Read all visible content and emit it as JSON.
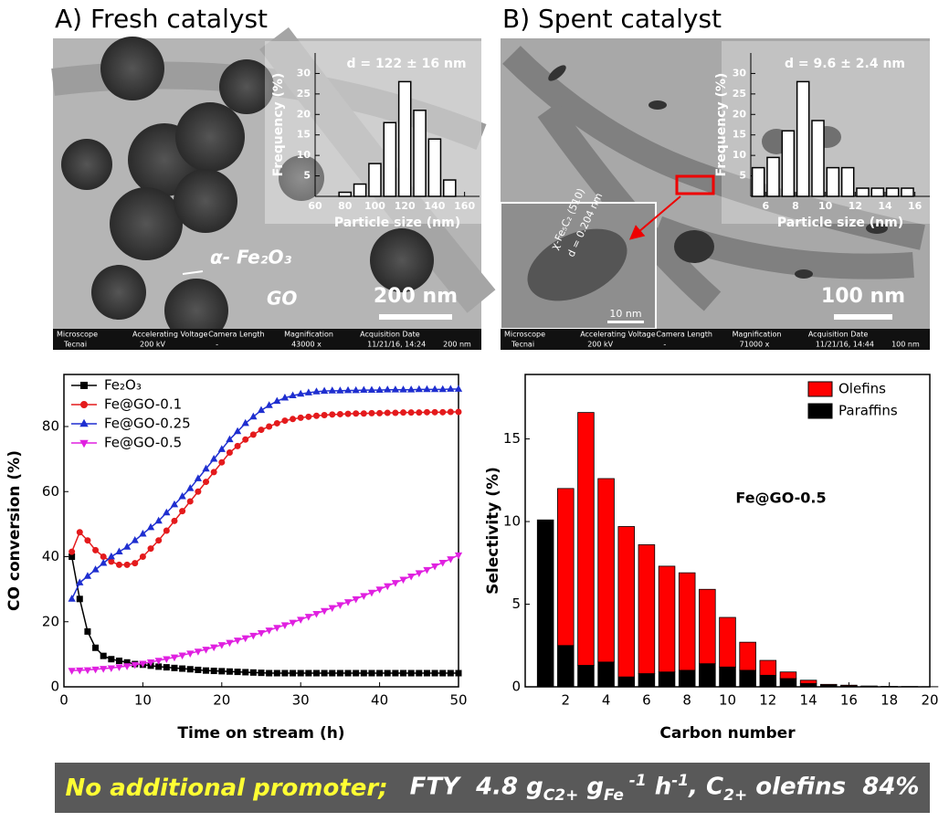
{
  "panels": [
    {
      "title": "A) Fresh catalyst",
      "labels": [
        "α- Fe₂O₃",
        "GO"
      ],
      "scale_bar": "200 nm",
      "info_header": [
        "Microscope",
        "Accelerating Voltage",
        "Camera Length",
        "Magnification",
        "Acquisition Date"
      ],
      "info_values": [
        "Tecnai",
        "200 kV",
        "-",
        "43000 x",
        "11/21/16, 14:24",
        "200 nm"
      ]
    },
    {
      "title": "B) Spent catalyst",
      "labels": [
        "χ-Fe₅C₂ (510)",
        "d = 0.204 nm",
        "10 nm"
      ],
      "scale_bar": "100 nm",
      "info_header": [
        "Microscope",
        "Accelerating Voltage",
        "Camera Length",
        "Magnification",
        "Acquisition Date"
      ],
      "info_values": [
        "Tecnai",
        "200 kV",
        "-",
        "71000 x",
        "11/21/16, 14:44",
        "100 nm"
      ]
    }
  ],
  "chart_data": [
    {
      "type": "histogram",
      "annotation": "d = 122 ± 16 nm",
      "x_label": "Particle size (nm)",
      "y_label": "Frequency (%)",
      "bins": [
        75,
        85,
        95,
        105,
        115,
        125,
        135,
        145,
        155
      ],
      "values": [
        1,
        3,
        8,
        18,
        28,
        21,
        14,
        4
      ],
      "xlim": [
        60,
        170
      ],
      "xticks": [
        60,
        80,
        100,
        120,
        140,
        160
      ],
      "ylim": [
        0,
        35
      ],
      "yticks": [
        5,
        10,
        15,
        20,
        25,
        30
      ]
    },
    {
      "type": "histogram",
      "annotation": "d = 9.6 ± 2.4 nm",
      "x_label": "Particle size (nm)",
      "y_label": "Frequency (%)",
      "bins": [
        5,
        6,
        7,
        8,
        9,
        10,
        11,
        12,
        13,
        14,
        15,
        16
      ],
      "values": [
        7,
        9.5,
        16,
        28,
        18.5,
        7,
        7,
        2,
        2,
        2,
        2
      ],
      "xlim": [
        5,
        17
      ],
      "xticks": [
        6,
        8,
        10,
        12,
        14,
        16
      ],
      "ylim": [
        0,
        35
      ],
      "yticks": [
        5,
        10,
        15,
        20,
        25,
        30
      ]
    },
    {
      "type": "line",
      "x_label": "Time on stream (h)",
      "y_label": "CO conversion (%)",
      "legend": "upper left",
      "x": [
        1,
        2,
        3,
        4,
        5,
        6,
        7,
        8,
        9,
        10,
        11,
        12,
        13,
        14,
        15,
        16,
        17,
        18,
        19,
        20,
        21,
        22,
        23,
        24,
        25,
        26,
        27,
        28,
        29,
        30,
        31,
        32,
        33,
        34,
        35,
        36,
        37,
        38,
        39,
        40,
        41,
        42,
        43,
        44,
        45,
        46,
        47,
        48,
        49,
        50
      ],
      "xlim": [
        0,
        50
      ],
      "xticks": [
        0,
        10,
        20,
        30,
        40,
        50
      ],
      "ylim": [
        0,
        96
      ],
      "yticks": [
        0,
        20,
        40,
        60,
        80
      ],
      "series": [
        {
          "name": "Fe₂O₃",
          "color": "#000000",
          "marker": "square",
          "values": [
            40,
            27,
            17,
            12,
            9.5,
            8.5,
            8,
            7.5,
            7,
            6.8,
            6.5,
            6.2,
            6,
            5.8,
            5.6,
            5.4,
            5.2,
            5,
            4.9,
            4.8,
            4.7,
            4.6,
            4.5,
            4.4,
            4.3,
            4.2,
            4.2,
            4.2,
            4.2,
            4.2,
            4.2,
            4.2,
            4.2,
            4.2,
            4.2,
            4.2,
            4.2,
            4.2,
            4.2,
            4.2,
            4.2,
            4.2,
            4.2,
            4.2,
            4.2,
            4.2,
            4.2,
            4.2,
            4.2,
            4.2
          ]
        },
        {
          "name": "Fe@GO-0.1",
          "color": "#e41a1c",
          "marker": "circle",
          "values": [
            41.5,
            47.5,
            45,
            42,
            40,
            38.5,
            37.5,
            37.5,
            38,
            40,
            42.5,
            45,
            48,
            51,
            54,
            57,
            60,
            63,
            66,
            69,
            72,
            74,
            76,
            77.5,
            79,
            80,
            81,
            81.8,
            82.3,
            82.7,
            83,
            83.3,
            83.5,
            83.7,
            83.8,
            83.9,
            84,
            84,
            84.1,
            84.1,
            84.2,
            84.2,
            84.3,
            84.3,
            84.3,
            84.4,
            84.4,
            84.4,
            84.5,
            84.5
          ]
        },
        {
          "name": "Fe@GO-0.25",
          "color": "#1f2fd0",
          "marker": "triangle-up",
          "values": [
            27,
            32,
            34,
            36,
            38,
            40,
            41.5,
            43,
            45,
            47,
            49,
            51,
            53.5,
            56,
            58.5,
            61,
            64,
            67,
            70,
            73,
            76,
            78.5,
            81,
            83,
            85,
            86.5,
            87.8,
            88.8,
            89.5,
            90,
            90.4,
            90.7,
            90.9,
            91,
            91,
            91.1,
            91.1,
            91.2,
            91.2,
            91.2,
            91.3,
            91.3,
            91.3,
            91.3,
            91.4,
            91.4,
            91.4,
            91.4,
            91.5,
            91.5
          ]
        },
        {
          "name": "Fe@GO-0.5",
          "color": "#e020e0",
          "marker": "triangle-down",
          "values": [
            5,
            5.1,
            5.2,
            5.4,
            5.6,
            5.8,
            6.1,
            6.4,
            6.8,
            7.2,
            7.6,
            8.1,
            8.6,
            9.1,
            9.7,
            10.3,
            10.9,
            11.5,
            12.2,
            12.9,
            13.6,
            14.3,
            15,
            15.8,
            16.6,
            17.4,
            18.2,
            19,
            19.8,
            20.7,
            21.6,
            22.5,
            23.4,
            24.3,
            25.2,
            26.1,
            27,
            28,
            29,
            30,
            31,
            32,
            33,
            34,
            35,
            36,
            37.1,
            38.2,
            39.3,
            40.5
          ]
        }
      ]
    },
    {
      "type": "stacked_bar",
      "x_label": "Carbon number",
      "y_label": "Selectivity (%)",
      "annotation": "Fe@GO-0.5",
      "legend": "upper right",
      "x": [
        1,
        2,
        3,
        4,
        5,
        6,
        7,
        8,
        9,
        10,
        11,
        12,
        13,
        14,
        15,
        16,
        17,
        18,
        19,
        20
      ],
      "xlim": [
        0,
        20
      ],
      "xticks": [
        2,
        4,
        6,
        8,
        10,
        12,
        14,
        16,
        18,
        20
      ],
      "ylim": [
        0,
        18.9
      ],
      "yticks": [
        0,
        5,
        10,
        15
      ],
      "series": [
        {
          "name": "Paraffins",
          "color": "#000000",
          "values": [
            10.1,
            2.5,
            1.3,
            1.5,
            0.6,
            0.8,
            0.9,
            1.0,
            1.4,
            1.2,
            1.0,
            0.7,
            0.5,
            0.2,
            0.1,
            0.05,
            0.03,
            0.02,
            0.01,
            0.01
          ]
        },
        {
          "name": "Olefins",
          "color": "#ff0000",
          "values": [
            0,
            9.5,
            15.3,
            11.1,
            9.1,
            7.8,
            6.4,
            5.9,
            4.5,
            3.0,
            1.7,
            0.9,
            0.4,
            0.2,
            0.05,
            0.05,
            0.02,
            0.01,
            0.01,
            0
          ]
        }
      ]
    }
  ],
  "banner": {
    "highlight": "No additional promoter;",
    "parts": [
      {
        "text": "FTY  4.8 g"
      },
      {
        "text": "C2+",
        "style": "sub"
      },
      {
        "text": " g"
      },
      {
        "text": "Fe",
        "style": "sub"
      },
      {
        "text": " -1",
        "style": "sup"
      },
      {
        "text": " h"
      },
      {
        "text": "-1",
        "style": "sup"
      },
      {
        "text": ", C"
      },
      {
        "text": "2+",
        "style": "sub"
      },
      {
        "text": " olefins  84%"
      }
    ]
  }
}
